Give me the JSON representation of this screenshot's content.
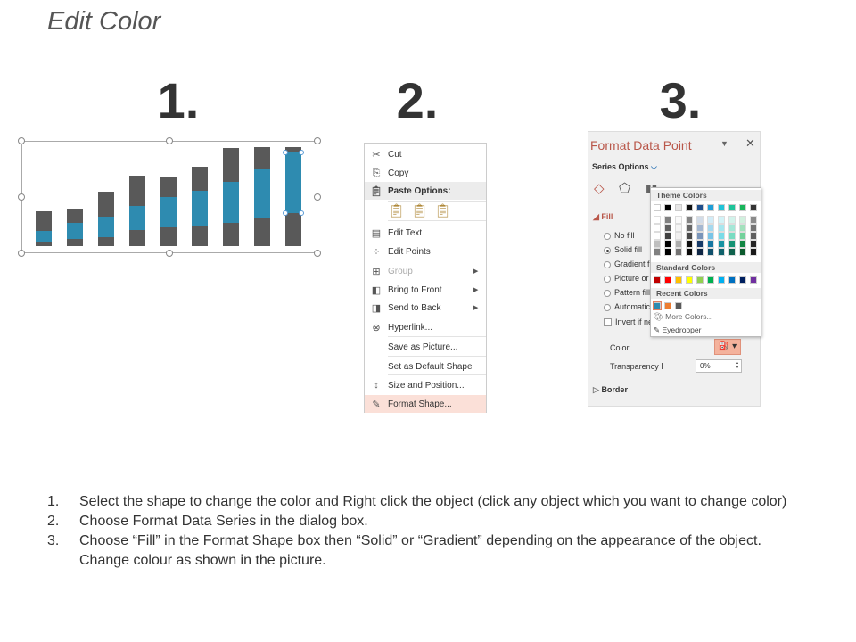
{
  "title": "Edit Color",
  "step_numbers": [
    "1.",
    "2.",
    "3."
  ],
  "chart_colors": {
    "bar_dark": "#595959",
    "bar_blue": "#2e8bb0"
  },
  "context_menu": {
    "items": [
      {
        "label": "Cut",
        "icon": "scissors-icon"
      },
      {
        "label": "Copy",
        "icon": "copy-icon"
      },
      {
        "label": "Paste Options:",
        "icon": "paste-icon"
      },
      {
        "label": "Edit Text",
        "icon": "edit-text-icon"
      },
      {
        "label": "Edit Points",
        "icon": "edit-points-icon"
      },
      {
        "label": "Group",
        "icon": "group-icon",
        "disabled": true
      },
      {
        "label": "Bring to Front",
        "icon": "bring-to-front-icon"
      },
      {
        "label": "Send to Back",
        "icon": "send-to-back-icon"
      },
      {
        "label": "Hyperlink...",
        "icon": "hyperlink-icon"
      },
      {
        "label": "Save as Picture...",
        "icon": ""
      },
      {
        "label": "Set as Default Shape",
        "icon": ""
      },
      {
        "label": "Size and Position...",
        "icon": "size-position-icon"
      },
      {
        "label": "Format Shape...",
        "icon": "format-shape-icon",
        "highlighted": true
      }
    ],
    "highlight_color": "#fbe0d8"
  },
  "format_panel": {
    "title": "Format Data Point",
    "series_options": "Series Options",
    "fill_header": "Fill",
    "fill_options": [
      "No fill",
      "Solid fill",
      "Gradient fi",
      "Picture or",
      "Pattern fill",
      "Automatic"
    ],
    "selected_fill": "Solid fill",
    "invert": "Invert if ne",
    "color_label": "Color",
    "transparency_label": "Transparency",
    "transparency_value": "0%",
    "border_header": "Border",
    "accent": "#b9574a",
    "color_button_bg": "#f4b29c"
  },
  "color_popup": {
    "theme_label": "Theme Colors",
    "theme_colors": [
      "#ffffff",
      "#000000",
      "#e7e6e6",
      "#111111",
      "#1f4e8c",
      "#1f9fd8",
      "#20c4d8",
      "#1fc49a",
      "#18b45a",
      "#333333"
    ],
    "standard_label": "Standard Colors",
    "standard_colors": [
      "#c00000",
      "#ff0000",
      "#ffc000",
      "#ffff00",
      "#92d050",
      "#00b050",
      "#00b0f0",
      "#0070c0",
      "#002060",
      "#7030a0"
    ],
    "recent_label": "Recent Colors",
    "recent_colors": [
      "#2e8bb0",
      "#ed7d31",
      "#595959"
    ],
    "more_colors": "More Colors...",
    "eyedropper": "Eyedropper"
  },
  "instructions": [
    {
      "num": "1.",
      "text": "Select the shape to change the color and Right click the object (click any object which you want to change color)"
    },
    {
      "num": "2.",
      "text": "Choose Format Data Series in the dialog box."
    },
    {
      "num": "3.",
      "text": "Choose “Fill” in the Format Shape box then “Solid” or “Gradient” depending on the appearance of the object. Change colour as shown in the picture."
    }
  ]
}
